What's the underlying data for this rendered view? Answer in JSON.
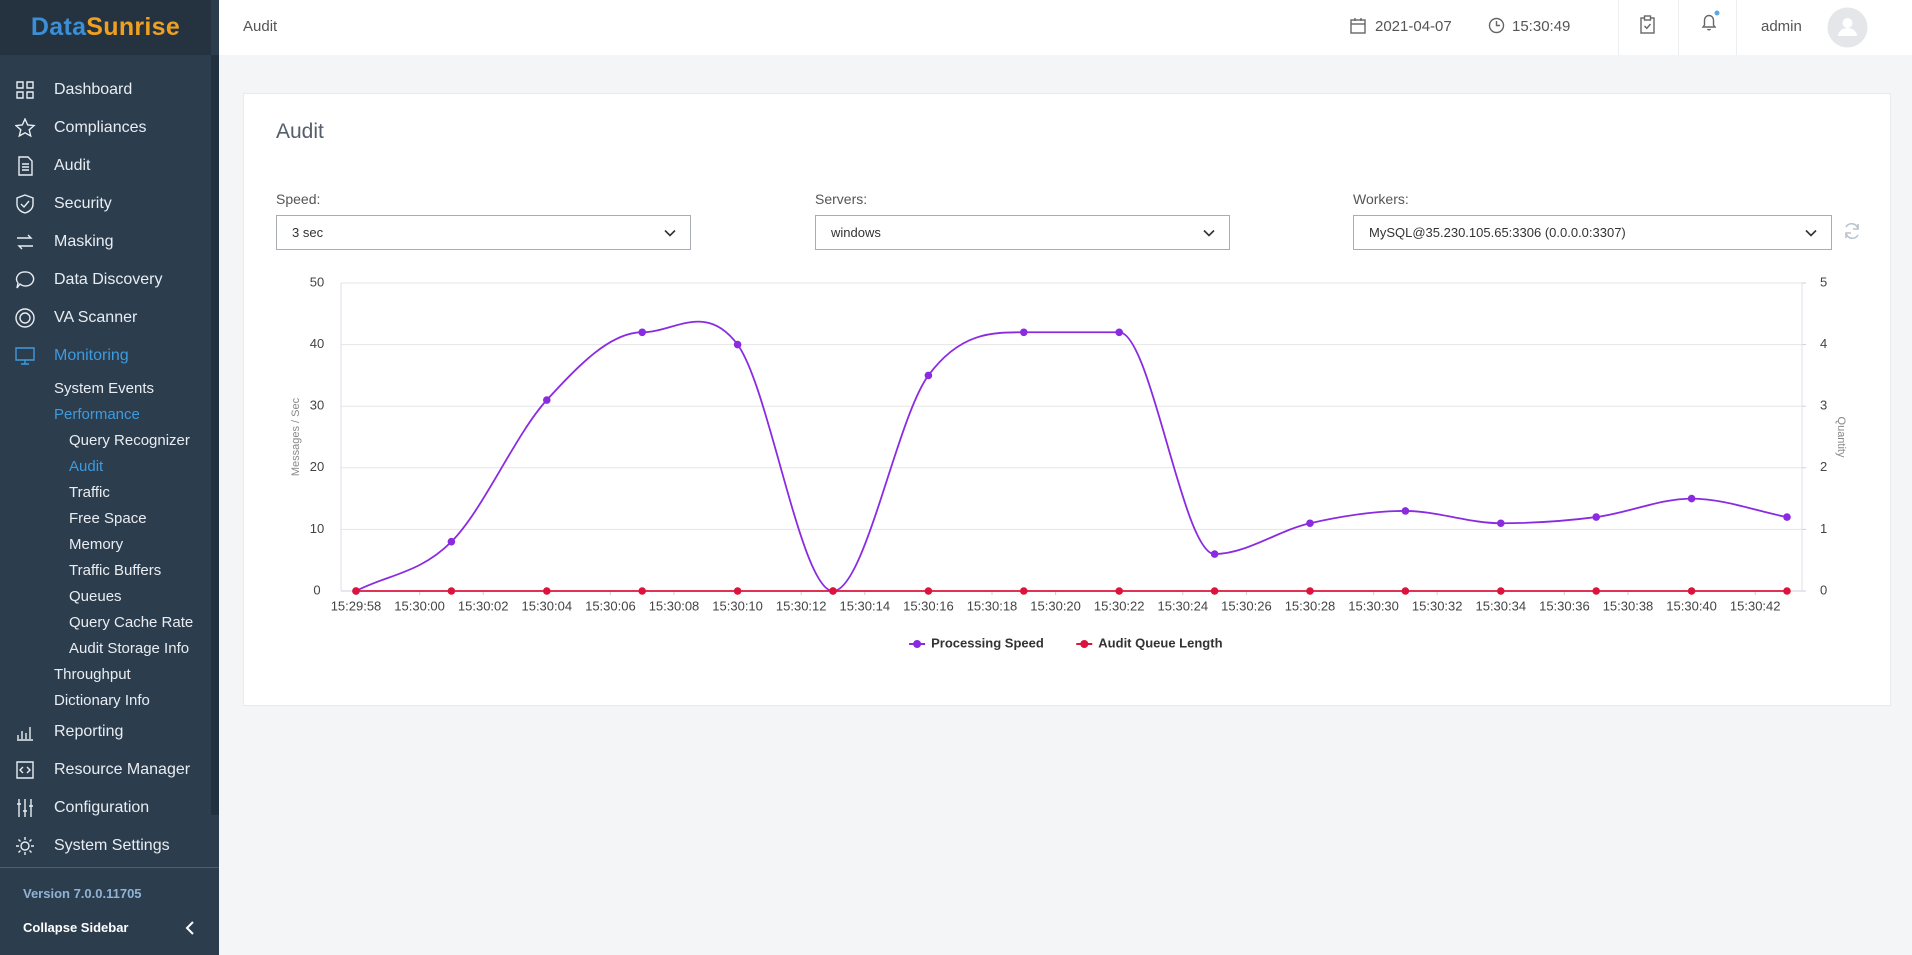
{
  "sidebar": {
    "logo": [
      "Data",
      "Sunrise"
    ],
    "menu": [
      {
        "label": "Dashboard"
      },
      {
        "label": "Compliances"
      },
      {
        "label": "Audit"
      },
      {
        "label": "Security"
      },
      {
        "label": "Masking"
      },
      {
        "label": "Data Discovery"
      },
      {
        "label": "VA Scanner"
      },
      {
        "label": "Monitoring",
        "active": true,
        "children": [
          {
            "label": "System Events"
          },
          {
            "label": "Performance",
            "active": true,
            "children": [
              {
                "label": "Query Recognizer"
              },
              {
                "label": "Audit",
                "active": true
              },
              {
                "label": "Traffic"
              },
              {
                "label": "Free Space"
              },
              {
                "label": "Memory"
              },
              {
                "label": "Traffic Buffers"
              },
              {
                "label": "Queues"
              },
              {
                "label": "Query Cache Rate"
              },
              {
                "label": "Audit Storage Info"
              }
            ]
          },
          {
            "label": "Throughput"
          },
          {
            "label": "Dictionary Info"
          }
        ]
      },
      {
        "label": "Reporting"
      },
      {
        "label": "Resource Manager"
      },
      {
        "label": "Configuration"
      },
      {
        "label": "System Settings"
      }
    ],
    "version": "Version 7.0.0.11705",
    "collapse": "Collapse Sidebar"
  },
  "header": {
    "breadcrumb": "Audit",
    "date": "2021-04-07",
    "time": "15:30:49",
    "user": "admin"
  },
  "panel": {
    "title": "Audit",
    "filters": [
      {
        "label": "Speed:",
        "value": "3 sec"
      },
      {
        "label": "Servers:",
        "value": "windows"
      },
      {
        "label": "Workers:",
        "value": "MySQL@35.230.105.65:3306 (0.0.0.0:3307)"
      }
    ]
  },
  "chart_data": {
    "type": "line",
    "x": [
      "15:29:58",
      "15:30:01",
      "15:30:04",
      "15:30:07",
      "15:30:10",
      "15:30:13",
      "15:30:16",
      "15:30:19",
      "15:30:22",
      "15:30:25",
      "15:30:28",
      "15:30:31",
      "15:30:34",
      "15:30:37",
      "15:30:40",
      "15:30:43"
    ],
    "xticks": [
      "15:29:58",
      "15:30:00",
      "15:30:02",
      "15:30:04",
      "15:30:06",
      "15:30:08",
      "15:30:10",
      "15:30:12",
      "15:30:14",
      "15:30:16",
      "15:30:18",
      "15:30:20",
      "15:30:22",
      "15:30:24",
      "15:30:26",
      "15:30:28",
      "15:30:30",
      "15:30:32",
      "15:30:34",
      "15:30:36",
      "15:30:38",
      "15:30:40",
      "15:30:42"
    ],
    "series": [
      {
        "name": "Processing Speed",
        "color": "#8a2be2",
        "values": [
          0,
          8,
          31,
          42,
          40,
          0,
          35,
          42,
          42,
          6,
          11,
          13,
          11,
          12,
          15,
          12
        ]
      },
      {
        "name": "Audit Queue Length",
        "color": "#dc143c",
        "axis": "y2",
        "values": [
          0,
          0,
          0,
          0,
          0,
          0,
          0,
          0,
          0,
          0,
          0,
          0,
          0,
          0,
          0,
          0
        ]
      }
    ],
    "ylabel": "Messages / Sec",
    "y2label": "Quantity",
    "ylim": [
      0,
      50
    ],
    "yticks": [
      0,
      10,
      20,
      30,
      40,
      50
    ],
    "y2lim": [
      0,
      5
    ],
    "y2ticks": [
      0,
      1,
      2,
      3,
      4,
      5
    ],
    "grid": true,
    "smooth": true,
    "legend": "bottom"
  }
}
